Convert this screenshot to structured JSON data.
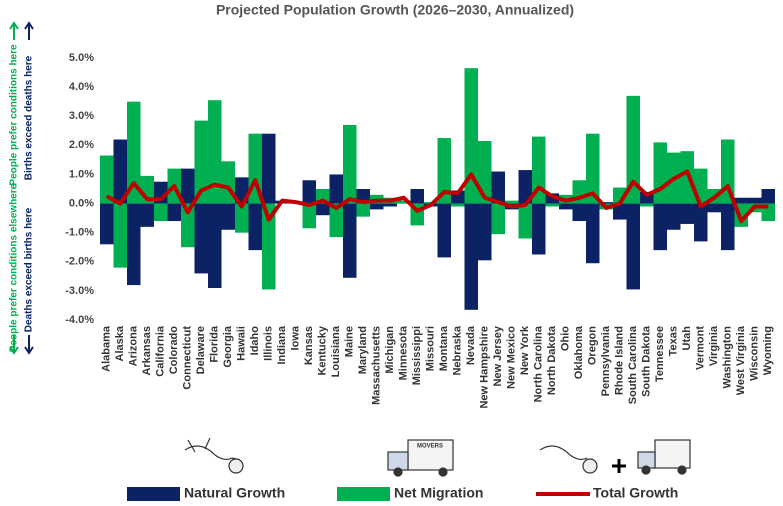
{
  "chart_data": {
    "type": "bar",
    "title": "Projected Population Growth (2026–2030, Annualized)",
    "side_labels": [
      "People prefer conditions here",
      "Births exceed deaths here",
      "People prefer conditions elsewhere",
      "Deaths exceed births here"
    ],
    "categories": [
      "Alabama",
      "Alaska",
      "Arizona",
      "Arkansas",
      "California",
      "Colorado",
      "Connecticut",
      "Delaware",
      "Florida",
      "Georgia",
      "Hawaii",
      "Idaho",
      "Illinois",
      "Indiana",
      "Iowa",
      "Kansas",
      "Kentucky",
      "Louisiana",
      "Maine",
      "Maryland",
      "Massachusetts",
      "Michigan",
      "Minnesota",
      "Mississippi",
      "Missouri",
      "Montana",
      "Nebraska",
      "Nevada",
      "New Hampshire",
      "New Jersey",
      "New Mexico",
      "New York",
      "North Carolina",
      "North Dakota",
      "Ohio",
      "Oklahoma",
      "Oregon",
      "Pennsylvania",
      "Rhode Island",
      "South Carolina",
      "South Dakota",
      "Tennessee",
      "Texas",
      "Utah",
      "Vermont",
      "Virginia",
      "Washington",
      "West Virginia",
      "Wisconsin",
      "Wyoming"
    ],
    "series": [
      {
        "name": "Natural Growth",
        "color": "#0b2265",
        "type": "bar",
        "values": [
          -1.4,
          2.2,
          -2.8,
          -0.8,
          0.75,
          -0.6,
          1.2,
          -2.4,
          -2.9,
          -0.9,
          0.9,
          -1.6,
          2.4,
          0.1,
          0.05,
          0.8,
          -0.4,
          1.0,
          -2.55,
          0.5,
          -0.2,
          -0.1,
          0.1,
          0.5,
          -0.1,
          -1.85,
          0.45,
          -3.65,
          -1.95,
          1.1,
          -0.2,
          1.15,
          -1.75,
          0.35,
          -0.2,
          -0.6,
          -2.05,
          0.05,
          -0.55,
          -2.95,
          0.4,
          -1.6,
          -0.9,
          -0.7,
          -1.3,
          -0.3,
          -1.6,
          0.2,
          0.2,
          0.5
        ]
      },
      {
        "name": "Net Migration",
        "color": "#00b050",
        "type": "bar",
        "values": [
          1.65,
          -2.2,
          3.5,
          0.95,
          -0.6,
          1.2,
          -1.5,
          2.85,
          3.55,
          1.45,
          -1.0,
          2.4,
          -2.95,
          0.0,
          0.0,
          -0.85,
          0.5,
          -1.15,
          2.7,
          -0.45,
          0.3,
          0.2,
          0.1,
          -0.75,
          0.05,
          2.25,
          -0.1,
          4.65,
          2.15,
          -1.05,
          0.1,
          -1.2,
          2.3,
          -0.1,
          0.3,
          0.8,
          2.4,
          -0.2,
          0.55,
          3.7,
          -0.1,
          2.1,
          1.75,
          1.8,
          1.2,
          0.5,
          2.2,
          -0.8,
          -0.3,
          -0.6
        ]
      },
      {
        "name": "Total Growth",
        "color": "#c00000",
        "type": "line",
        "values": [
          0.25,
          0.0,
          0.7,
          0.15,
          0.15,
          0.6,
          -0.3,
          0.45,
          0.65,
          0.55,
          -0.1,
          0.8,
          -0.55,
          0.1,
          0.05,
          -0.05,
          0.1,
          -0.15,
          0.15,
          0.05,
          0.1,
          0.1,
          0.2,
          -0.25,
          -0.05,
          0.4,
          0.35,
          1.0,
          0.2,
          0.05,
          -0.1,
          -0.05,
          0.55,
          0.25,
          0.1,
          0.2,
          0.35,
          -0.15,
          0.0,
          0.75,
          0.3,
          0.5,
          0.85,
          1.1,
          -0.1,
          0.2,
          0.6,
          -0.6,
          -0.1,
          -0.1
        ]
      }
    ],
    "ylim": [
      -4,
      5
    ],
    "yticks": [
      {
        "value": -4,
        "label": "-4.0%"
      },
      {
        "value": -3,
        "label": "-3.0%"
      },
      {
        "value": -2,
        "label": "-2.0%"
      },
      {
        "value": -1,
        "label": "-1.0%"
      },
      {
        "value": 0,
        "label": "0.0%"
      },
      {
        "value": 1,
        "label": "1.0%"
      },
      {
        "value": 2,
        "label": "2.0%"
      },
      {
        "value": 3,
        "label": "3.0%"
      },
      {
        "value": 4,
        "label": "4.0%"
      },
      {
        "value": 5,
        "label": "5.0%"
      }
    ],
    "grid": false
  }
}
